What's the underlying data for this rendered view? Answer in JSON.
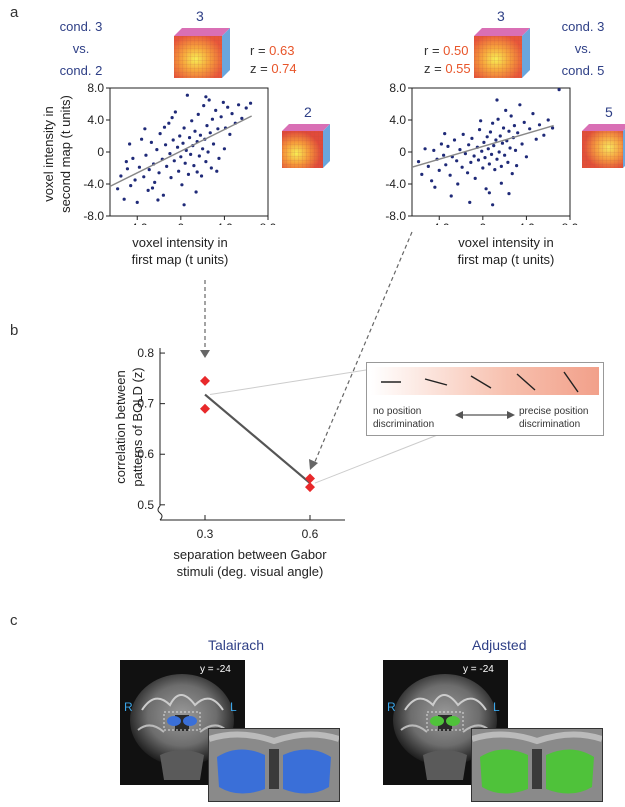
{
  "panel_labels": {
    "a": "a",
    "b": "b",
    "c": "c"
  },
  "panel_a": {
    "left": {
      "cond_lines": [
        "cond. 3",
        "vs.",
        "cond. 2"
      ],
      "map_top_label": "3",
      "map_side_label": "2",
      "r_label": "r = ",
      "r_value": "0.63",
      "z_label": "z = ",
      "z_value": "0.74",
      "ylabel_line1": "voxel intensity in",
      "ylabel_line2": "second map (t units)",
      "xlabel_line1": "voxel intensity in",
      "xlabel_line2": "first map (t units)"
    },
    "right": {
      "cond_lines": [
        "cond. 3",
        "vs.",
        "cond. 5"
      ],
      "map_top_label": "3",
      "map_side_label": "5",
      "r_label": "r = ",
      "r_value": "0.50",
      "z_label": "z = ",
      "z_value": "0.55",
      "xlabel_line1": "voxel intensity in",
      "xlabel_line2": "first map (t units)"
    },
    "y_ticks": [
      "8.0",
      "4.0",
      "0",
      "-4.0",
      "-8.0"
    ],
    "x_ticks": [
      "-4.0",
      "0",
      "4.0",
      "8.0"
    ]
  },
  "panel_b": {
    "ylabel_line1": "correlation between",
    "ylabel_line2": "patterns of BOLD (z)",
    "xlabel_line1": "separation between Gabor",
    "xlabel_line2": "stimuli (deg. visual angle)",
    "y_ticks": [
      "0.8",
      "0.7",
      "0.6",
      "0.5"
    ],
    "x_ticks": [
      "0.3",
      "0.6"
    ],
    "legend_left": [
      "no position",
      "discrimination"
    ],
    "legend_right": [
      "precise position",
      "discrimination"
    ]
  },
  "panel_c": {
    "left_title": "Talairach",
    "right_title": "Adjusted",
    "slice_label": "y = -24",
    "R": "R",
    "L": "L",
    "colors": {
      "talairach": "#3a6fd8",
      "adjusted": "#4fc23a"
    }
  },
  "chart_data": [
    {
      "type": "scatter",
      "xlabel": "voxel intensity in first map (t units)",
      "ylabel": "voxel intensity in second map (t units)",
      "xlim": [
        -6.5,
        8.0
      ],
      "ylim": [
        -8.0,
        8.0
      ],
      "x_ticks": [
        -4.0,
        0,
        4.0,
        8.0
      ],
      "y_ticks": [
        8.0,
        4.0,
        0,
        -4.0,
        -8.0
      ],
      "annotations": [
        "r = 0.63",
        "z = 0.74"
      ],
      "trend_line": {
        "x": [
          -6.5,
          6.5
        ],
        "y": [
          -4.3,
          4.5
        ]
      },
      "points": [
        [
          -5.8,
          -4.6
        ],
        [
          -5.5,
          -3.0
        ],
        [
          -5.2,
          -5.9
        ],
        [
          -4.9,
          -2.1
        ],
        [
          -4.6,
          -4.2
        ],
        [
          -4.4,
          -0.8
        ],
        [
          -4.2,
          -3.5
        ],
        [
          -4.0,
          -6.3
        ],
        [
          -3.8,
          -1.9
        ],
        [
          -3.6,
          1.6
        ],
        [
          -3.4,
          -3.1
        ],
        [
          -3.2,
          -0.4
        ],
        [
          -3.0,
          -4.8
        ],
        [
          -2.9,
          -2.2
        ],
        [
          -2.7,
          1.2
        ],
        [
          -2.5,
          -1.5
        ],
        [
          -2.4,
          -3.8
        ],
        [
          -2.2,
          0.3
        ],
        [
          -2.0,
          -2.6
        ],
        [
          -1.9,
          2.3
        ],
        [
          -1.7,
          -0.9
        ],
        [
          -1.6,
          -5.4
        ],
        [
          -1.4,
          0.9
        ],
        [
          -1.3,
          -1.8
        ],
        [
          -1.1,
          3.6
        ],
        [
          -1.0,
          -0.2
        ],
        [
          -0.9,
          -3.2
        ],
        [
          -0.7,
          1.5
        ],
        [
          -0.6,
          -1.1
        ],
        [
          -0.5,
          5.0
        ],
        [
          -0.3,
          0.6
        ],
        [
          -0.2,
          -2.4
        ],
        [
          -0.1,
          2.0
        ],
        [
          0.0,
          -0.6
        ],
        [
          0.1,
          -4.1
        ],
        [
          0.2,
          1.1
        ],
        [
          0.3,
          3.0
        ],
        [
          0.4,
          -1.4
        ],
        [
          0.5,
          0.2
        ],
        [
          0.6,
          7.1
        ],
        [
          0.7,
          -2.8
        ],
        [
          0.8,
          1.8
        ],
        [
          0.9,
          -0.3
        ],
        [
          1.0,
          3.9
        ],
        [
          1.1,
          0.8
        ],
        [
          1.2,
          -1.7
        ],
        [
          1.3,
          2.6
        ],
        [
          1.4,
          -5.0
        ],
        [
          1.5,
          1.3
        ],
        [
          1.6,
          4.7
        ],
        [
          1.7,
          -0.5
        ],
        [
          1.8,
          2.1
        ],
        [
          1.9,
          -3.0
        ],
        [
          2.0,
          0.4
        ],
        [
          2.1,
          5.8
        ],
        [
          2.2,
          1.6
        ],
        [
          2.3,
          -1.2
        ],
        [
          2.4,
          3.3
        ],
        [
          2.5,
          0.0
        ],
        [
          2.6,
          6.5
        ],
        [
          2.7,
          2.4
        ],
        [
          2.8,
          -2.0
        ],
        [
          2.9,
          4.1
        ],
        [
          3.0,
          1.0
        ],
        [
          3.2,
          5.2
        ],
        [
          3.4,
          2.9
        ],
        [
          3.5,
          -0.8
        ],
        [
          3.7,
          4.4
        ],
        [
          3.9,
          6.2
        ],
        [
          4.1,
          3.0
        ],
        [
          4.3,
          5.6
        ],
        [
          4.5,
          2.2
        ],
        [
          4.7,
          4.8
        ],
        [
          5.0,
          3.6
        ],
        [
          5.3,
          5.9
        ],
        [
          5.6,
          4.2
        ],
        [
          6.0,
          5.5
        ],
        [
          6.4,
          6.1
        ],
        [
          -5.0,
          -1.2
        ],
        [
          -3.3,
          2.9
        ],
        [
          -2.1,
          -6.0
        ],
        [
          -0.8,
          4.3
        ],
        [
          0.3,
          -6.6
        ],
        [
          1.5,
          -2.5
        ],
        [
          2.3,
          6.9
        ],
        [
          3.3,
          -2.4
        ],
        [
          -4.7,
          1.0
        ],
        [
          -1.5,
          3.1
        ],
        [
          4.0,
          0.4
        ],
        [
          -2.6,
          -4.5
        ]
      ]
    },
    {
      "type": "scatter",
      "xlabel": "voxel intensity in first map (t units)",
      "ylabel": "voxel intensity in second map (t units)",
      "xlim": [
        -6.5,
        8.0
      ],
      "ylim": [
        -8.0,
        8.0
      ],
      "x_ticks": [
        -4.0,
        0,
        4.0,
        8.0
      ],
      "y_ticks": [
        8.0,
        4.0,
        0,
        -4.0,
        -8.0
      ],
      "annotations": [
        "r = 0.50",
        "z = 0.55"
      ],
      "trend_line": {
        "x": [
          -6.5,
          6.5
        ],
        "y": [
          -1.9,
          3.3
        ]
      },
      "points": [
        [
          -5.9,
          -1.2
        ],
        [
          -5.6,
          -2.8
        ],
        [
          -5.3,
          0.4
        ],
        [
          -5.0,
          -1.8
        ],
        [
          -4.7,
          -3.6
        ],
        [
          -4.5,
          0.2
        ],
        [
          -4.2,
          -0.9
        ],
        [
          -4.0,
          -2.3
        ],
        [
          -3.8,
          1.0
        ],
        [
          -3.6,
          -0.4
        ],
        [
          -3.4,
          -1.6
        ],
        [
          -3.2,
          0.7
        ],
        [
          -3.0,
          -2.9
        ],
        [
          -2.8,
          -0.6
        ],
        [
          -2.6,
          1.5
        ],
        [
          -2.4,
          -1.1
        ],
        [
          -2.3,
          -4.0
        ],
        [
          -2.1,
          0.3
        ],
        [
          -1.9,
          -1.9
        ],
        [
          -1.8,
          2.2
        ],
        [
          -1.6,
          -0.2
        ],
        [
          -1.4,
          -2.6
        ],
        [
          -1.3,
          0.9
        ],
        [
          -1.1,
          -1.3
        ],
        [
          -1.0,
          1.7
        ],
        [
          -0.8,
          -0.5
        ],
        [
          -0.7,
          -3.3
        ],
        [
          -0.5,
          0.6
        ],
        [
          -0.4,
          -1.0
        ],
        [
          -0.3,
          2.8
        ],
        [
          -0.1,
          0.1
        ],
        [
          0.0,
          -2.0
        ],
        [
          0.1,
          1.2
        ],
        [
          0.2,
          -0.7
        ],
        [
          0.3,
          -4.6
        ],
        [
          0.4,
          1.9
        ],
        [
          0.5,
          0.4
        ],
        [
          0.6,
          -1.5
        ],
        [
          0.7,
          2.5
        ],
        [
          0.8,
          -0.3
        ],
        [
          0.9,
          3.6
        ],
        [
          1.0,
          0.8
        ],
        [
          1.1,
          -2.2
        ],
        [
          1.2,
          1.5
        ],
        [
          1.3,
          -0.9
        ],
        [
          1.4,
          4.1
        ],
        [
          1.5,
          0.0
        ],
        [
          1.6,
          2.0
        ],
        [
          1.7,
          -1.8
        ],
        [
          1.8,
          1.1
        ],
        [
          1.9,
          3.0
        ],
        [
          2.0,
          -0.4
        ],
        [
          2.1,
          5.2
        ],
        [
          2.2,
          1.4
        ],
        [
          2.3,
          -1.3
        ],
        [
          2.4,
          2.6
        ],
        [
          2.5,
          0.5
        ],
        [
          2.6,
          4.5
        ],
        [
          2.7,
          -2.7
        ],
        [
          2.8,
          1.8
        ],
        [
          2.9,
          3.3
        ],
        [
          3.0,
          0.2
        ],
        [
          3.2,
          2.4
        ],
        [
          3.4,
          5.9
        ],
        [
          3.6,
          1.0
        ],
        [
          3.8,
          3.7
        ],
        [
          4.0,
          -0.6
        ],
        [
          4.3,
          2.9
        ],
        [
          4.6,
          4.8
        ],
        [
          4.9,
          1.6
        ],
        [
          5.2,
          3.4
        ],
        [
          5.6,
          2.1
        ],
        [
          6.0,
          4.0
        ],
        [
          6.4,
          3.0
        ],
        [
          7.0,
          7.8
        ],
        [
          -2.9,
          -5.5
        ],
        [
          -1.2,
          -6.3
        ],
        [
          0.6,
          -5.1
        ],
        [
          1.7,
          -3.9
        ],
        [
          -4.4,
          -4.4
        ],
        [
          -0.2,
          3.9
        ],
        [
          1.3,
          6.5
        ],
        [
          3.1,
          -1.7
        ],
        [
          -3.5,
          2.3
        ],
        [
          2.4,
          -5.2
        ],
        [
          0.9,
          -6.6
        ]
      ]
    },
    {
      "type": "line",
      "xlabel": "separation between Gabor stimuli (deg. visual angle)",
      "ylabel": "correlation between patterns of BOLD (z)",
      "x_ticks": [
        0.3,
        0.6
      ],
      "y_ticks": [
        0.8,
        0.7,
        0.6,
        0.5
      ],
      "ylim": [
        0.47,
        0.81
      ],
      "points": [
        [
          0.3,
          0.745
        ],
        [
          0.3,
          0.69
        ],
        [
          0.6,
          0.552
        ],
        [
          0.6,
          0.535
        ]
      ],
      "mean_line": {
        "x": [
          0.3,
          0.6
        ],
        "y": [
          0.718,
          0.543
        ]
      }
    }
  ]
}
